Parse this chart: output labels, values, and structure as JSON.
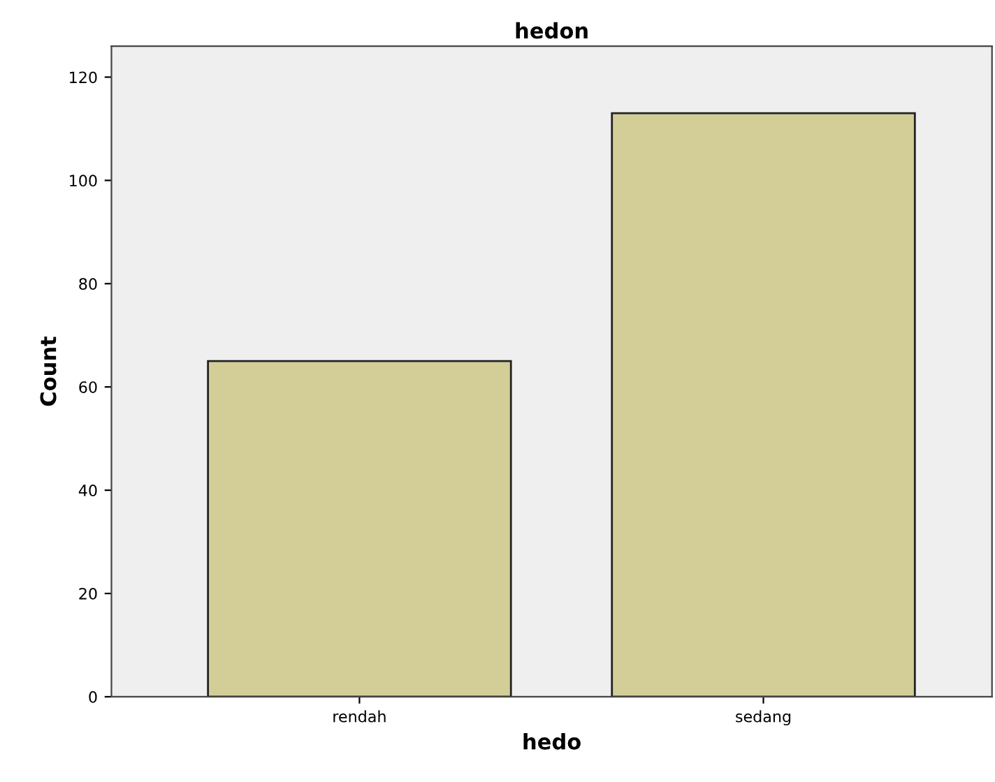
{
  "chart_data": {
    "type": "bar",
    "title": "hedon",
    "xlabel": "hedo",
    "ylabel": "Count",
    "categories": [
      "rendah",
      "sedang"
    ],
    "values": [
      65,
      113
    ],
    "color": "#d3ce97",
    "ylim": [
      0,
      126
    ],
    "yticks": [
      0,
      20,
      40,
      60,
      80,
      100,
      120
    ],
    "grid": false,
    "legend": false
  }
}
